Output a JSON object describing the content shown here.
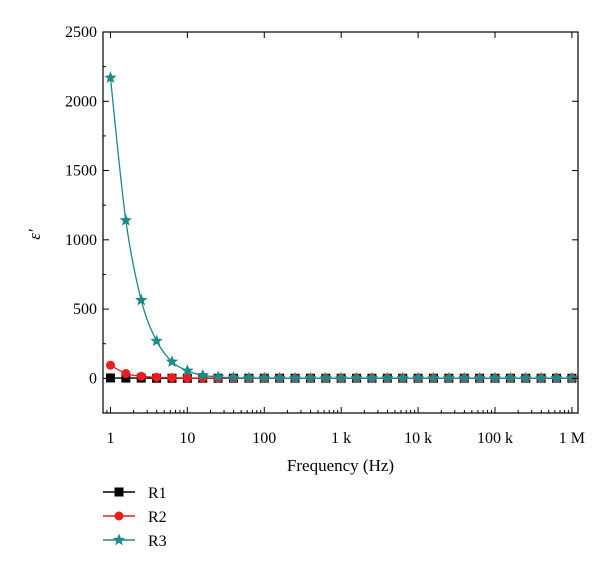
{
  "chart_data": {
    "type": "line",
    "xlabel": "Frequency (Hz)",
    "ylabel": "ε′",
    "xscale": "log",
    "xlim": [
      0.8,
      1200000
    ],
    "ylim": [
      -250,
      2500
    ],
    "xticks": [
      {
        "value": 1,
        "label": "1"
      },
      {
        "value": 10,
        "label": "10"
      },
      {
        "value": 100,
        "label": "100"
      },
      {
        "value": 1000,
        "label": "1 k"
      },
      {
        "value": 10000,
        "label": "10 k"
      },
      {
        "value": 100000,
        "label": "100 k"
      },
      {
        "value": 1000000,
        "label": "1 M"
      }
    ],
    "yticks": [
      0,
      500,
      1000,
      1500,
      2000,
      2500
    ],
    "grid": false,
    "legend_position": "bottom-left",
    "x": [
      1,
      1.585,
      2.512,
      3.981,
      6.31,
      10,
      15.85,
      25.12,
      39.81,
      63.1,
      100,
      158.5,
      251.2,
      398.1,
      631,
      1000,
      1585,
      2512,
      3981,
      6310,
      10000,
      15850,
      25120,
      39810,
      63100,
      100000,
      158500,
      251200,
      398100,
      631000,
      1000000
    ],
    "series": [
      {
        "name": "R1",
        "color": "#000000",
        "marker": "square",
        "values": [
          3,
          2,
          2,
          1,
          1,
          1,
          1,
          1,
          1,
          1,
          1,
          1,
          1,
          1,
          1,
          1,
          1,
          1,
          1,
          1,
          1,
          1,
          1,
          1,
          1,
          1,
          1,
          1,
          1,
          1,
          1
        ]
      },
      {
        "name": "R2",
        "color": "#ee1c1c",
        "marker": "circle",
        "values": [
          95,
          35,
          15,
          8,
          5,
          3,
          2,
          2,
          1,
          1,
          1,
          1,
          1,
          1,
          1,
          1,
          1,
          1,
          1,
          1,
          1,
          1,
          1,
          1,
          1,
          1,
          1,
          1,
          1,
          1,
          1
        ]
      },
      {
        "name": "R3",
        "color": "#1a8a8a",
        "marker": "star",
        "values": [
          2170,
          1140,
          565,
          270,
          120,
          55,
          22,
          10,
          5,
          3,
          2,
          2,
          1,
          1,
          1,
          1,
          1,
          1,
          1,
          1,
          1,
          1,
          1,
          1,
          1,
          1,
          1,
          1,
          1,
          1,
          1
        ]
      }
    ]
  }
}
